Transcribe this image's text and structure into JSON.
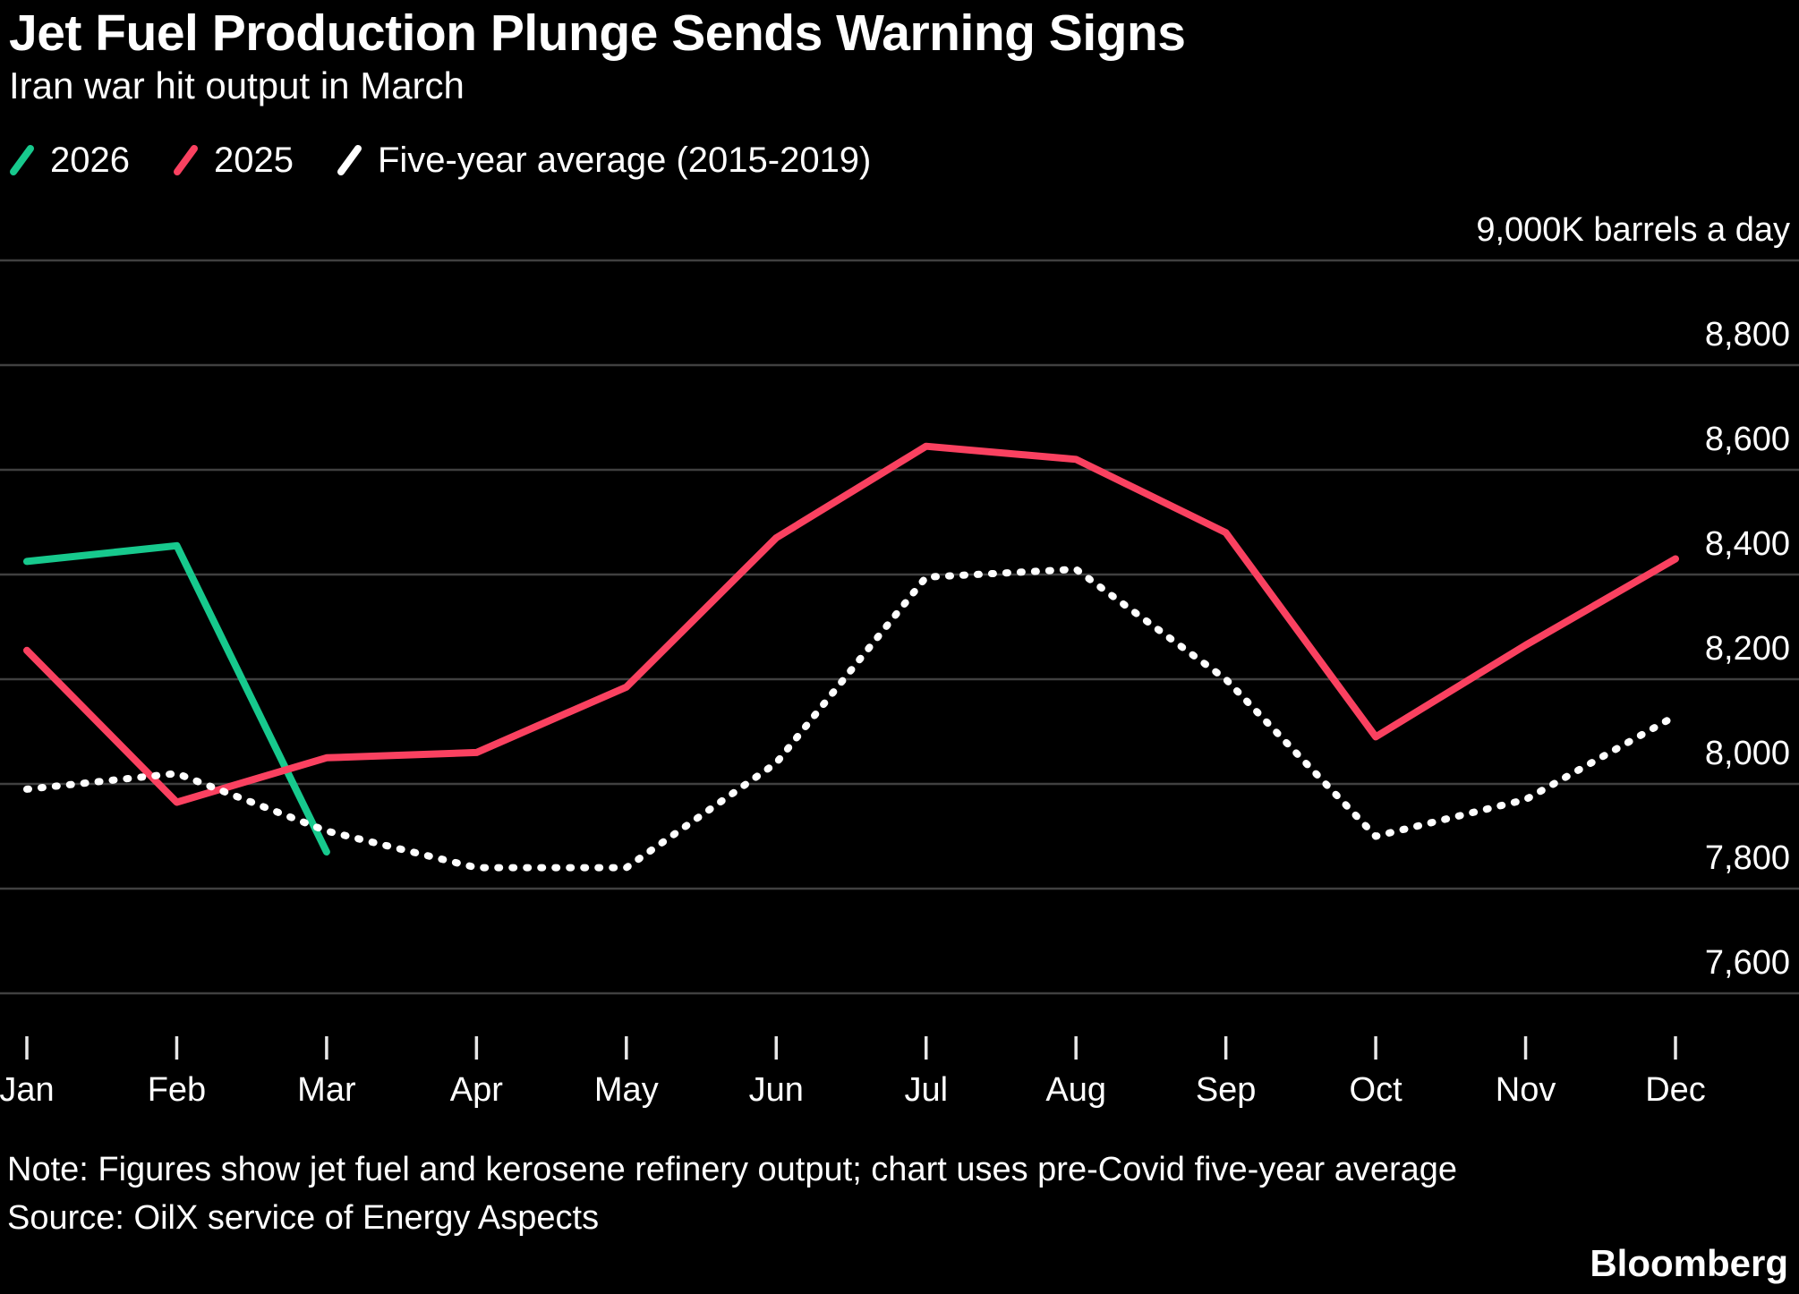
{
  "header": {
    "title": "Jet Fuel Production Plunge Sends Warning Signs",
    "subtitle": "Iran war hit output in March"
  },
  "legend": {
    "items": [
      {
        "label": "2026",
        "color": "#17c98d"
      },
      {
        "label": "2025",
        "color": "#fa4160"
      },
      {
        "label": "Five-year average (2015-2019)",
        "color": "#ffffff"
      }
    ]
  },
  "chart_data": {
    "type": "line",
    "title": "Jet Fuel Production Plunge Sends Warning Signs",
    "subtitle": "Iran war hit output in March",
    "unit_label": "9,000K barrels a day",
    "categories": [
      "Jan",
      "Feb",
      "Mar",
      "Apr",
      "May",
      "Jun",
      "Jul",
      "Aug",
      "Sep",
      "Oct",
      "Nov",
      "Dec"
    ],
    "ylim": [
      7600,
      9000
    ],
    "grid_step": 200,
    "grid": true,
    "legend_position": "top-left",
    "background": "#000000",
    "grid_color": "#404040",
    "y_ticks": [
      {
        "value": 9000,
        "label": "9,000K barrels a day"
      },
      {
        "value": 8800,
        "label": "8,800"
      },
      {
        "value": 8600,
        "label": "8,600"
      },
      {
        "value": 8400,
        "label": "8,400"
      },
      {
        "value": 8200,
        "label": "8,200"
      },
      {
        "value": 8000,
        "label": "8,000"
      },
      {
        "value": 7800,
        "label": "7,800"
      },
      {
        "value": 7600,
        "label": "7,600"
      }
    ],
    "series": [
      {
        "name": "2026",
        "color": "#17c98d",
        "style": "solid",
        "values": [
          8425,
          8455,
          7870,
          null,
          null,
          null,
          null,
          null,
          null,
          null,
          null,
          null
        ]
      },
      {
        "name": "2025",
        "color": "#fa4160",
        "style": "solid",
        "values": [
          8255,
          7965,
          8050,
          8060,
          8185,
          8470,
          8645,
          8620,
          8480,
          8090,
          8265,
          8430
        ]
      },
      {
        "name": "Five-year average (2015-2019)",
        "color": "#ffffff",
        "style": "dotted",
        "values": [
          7990,
          8020,
          7910,
          7840,
          7840,
          8040,
          8395,
          8410,
          8200,
          7900,
          7970,
          8130
        ]
      }
    ]
  },
  "footer": {
    "note": "Note: Figures show jet fuel and kerosene refinery output; chart uses pre-Covid five-year average",
    "source": "Source: OilX service of Energy Aspects",
    "brand": "Bloomberg"
  }
}
